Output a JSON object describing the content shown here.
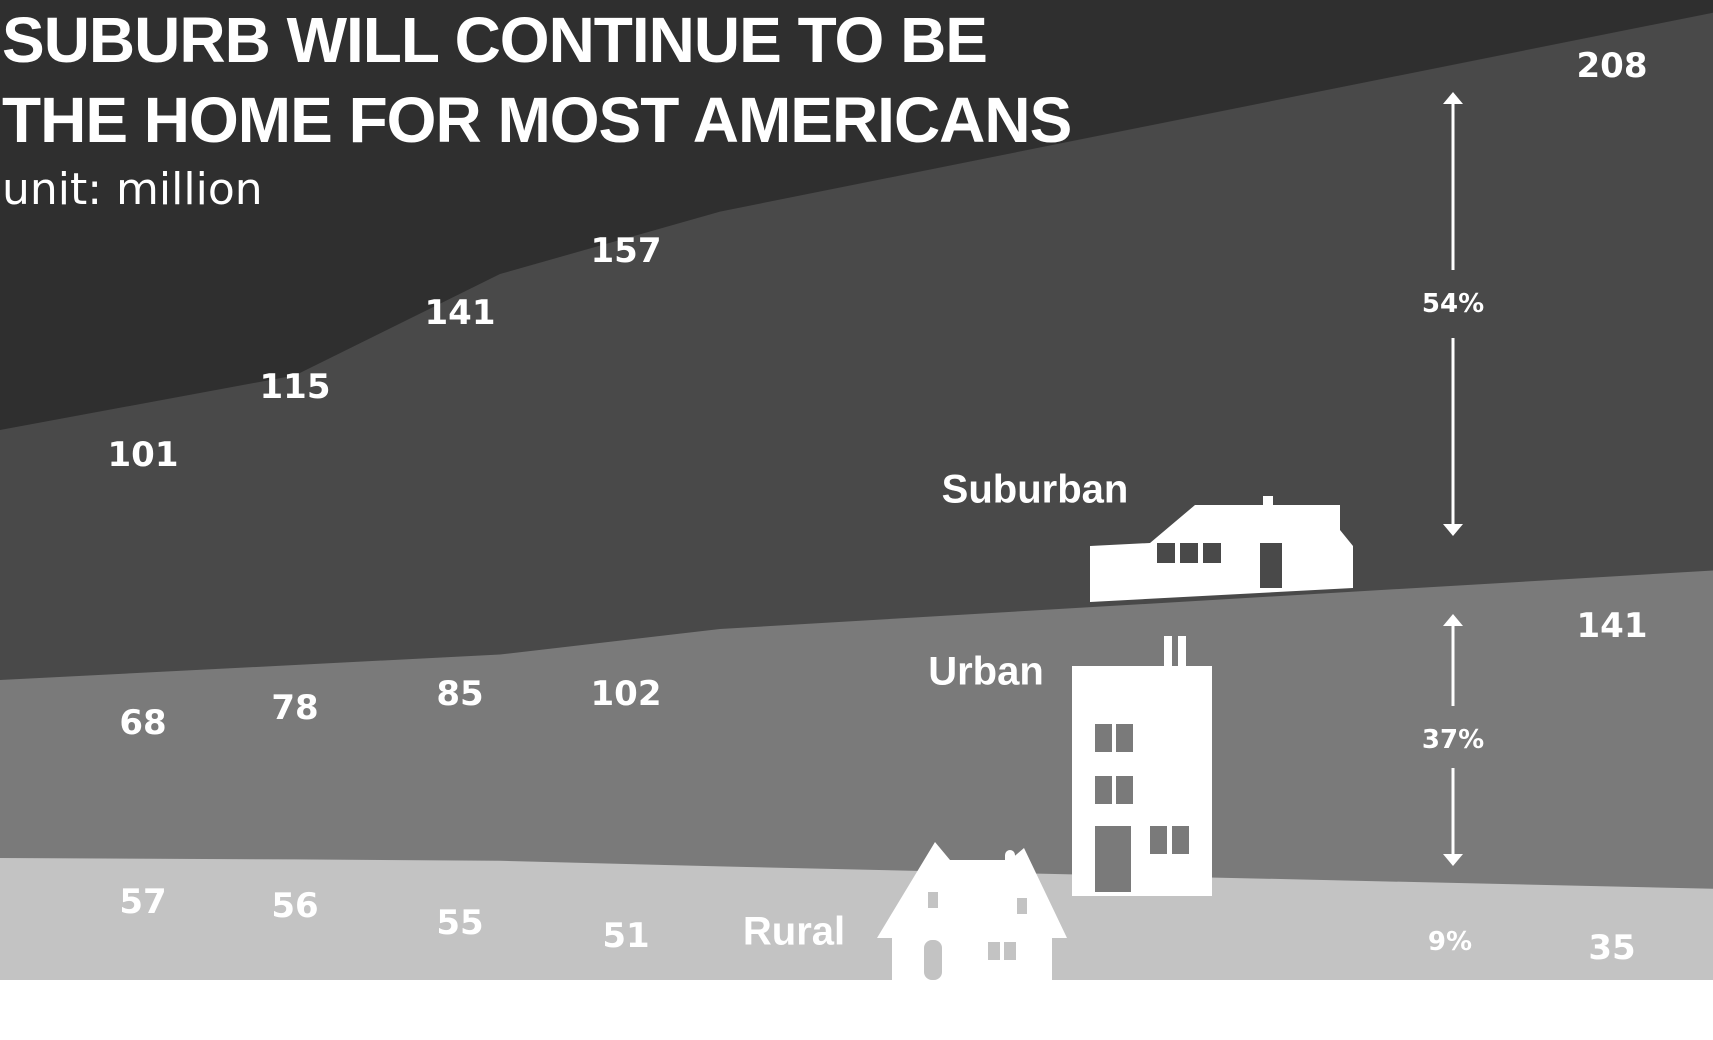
{
  "title": "SUBURB WILL CONTINUE TO BE THE HOME FOR MOST AMERICANS",
  "subtitle": "unit: million",
  "chart_data": {
    "type": "area",
    "stacked": false,
    "categories": [
      "",
      "",
      "",
      "",
      ""
    ],
    "series": [
      {
        "name": "Suburban",
        "values": [
          101,
          115,
          141,
          157,
          208
        ],
        "labels": [
          "101",
          "115",
          "141",
          "157",
          "208"
        ],
        "color": "#494949"
      },
      {
        "name": "Urban",
        "values": [
          68,
          78,
          85,
          102,
          141
        ],
        "labels": [
          "68",
          "78",
          "85",
          "102",
          "141"
        ],
        "color": "#7a7a7a"
      },
      {
        "name": "Rural",
        "values": [
          57,
          56,
          55,
          51,
          35
        ],
        "labels": [
          "57",
          "56",
          "55",
          "51",
          "35"
        ],
        "color": "#c3c3c3"
      }
    ],
    "shares": [
      {
        "series": "Suburban",
        "label": "54%"
      },
      {
        "series": "Urban",
        "label": "37%"
      },
      {
        "series": "Rural",
        "label": "9%"
      }
    ],
    "background_color": "#2f2f2f",
    "legend": "none",
    "grid": false
  }
}
